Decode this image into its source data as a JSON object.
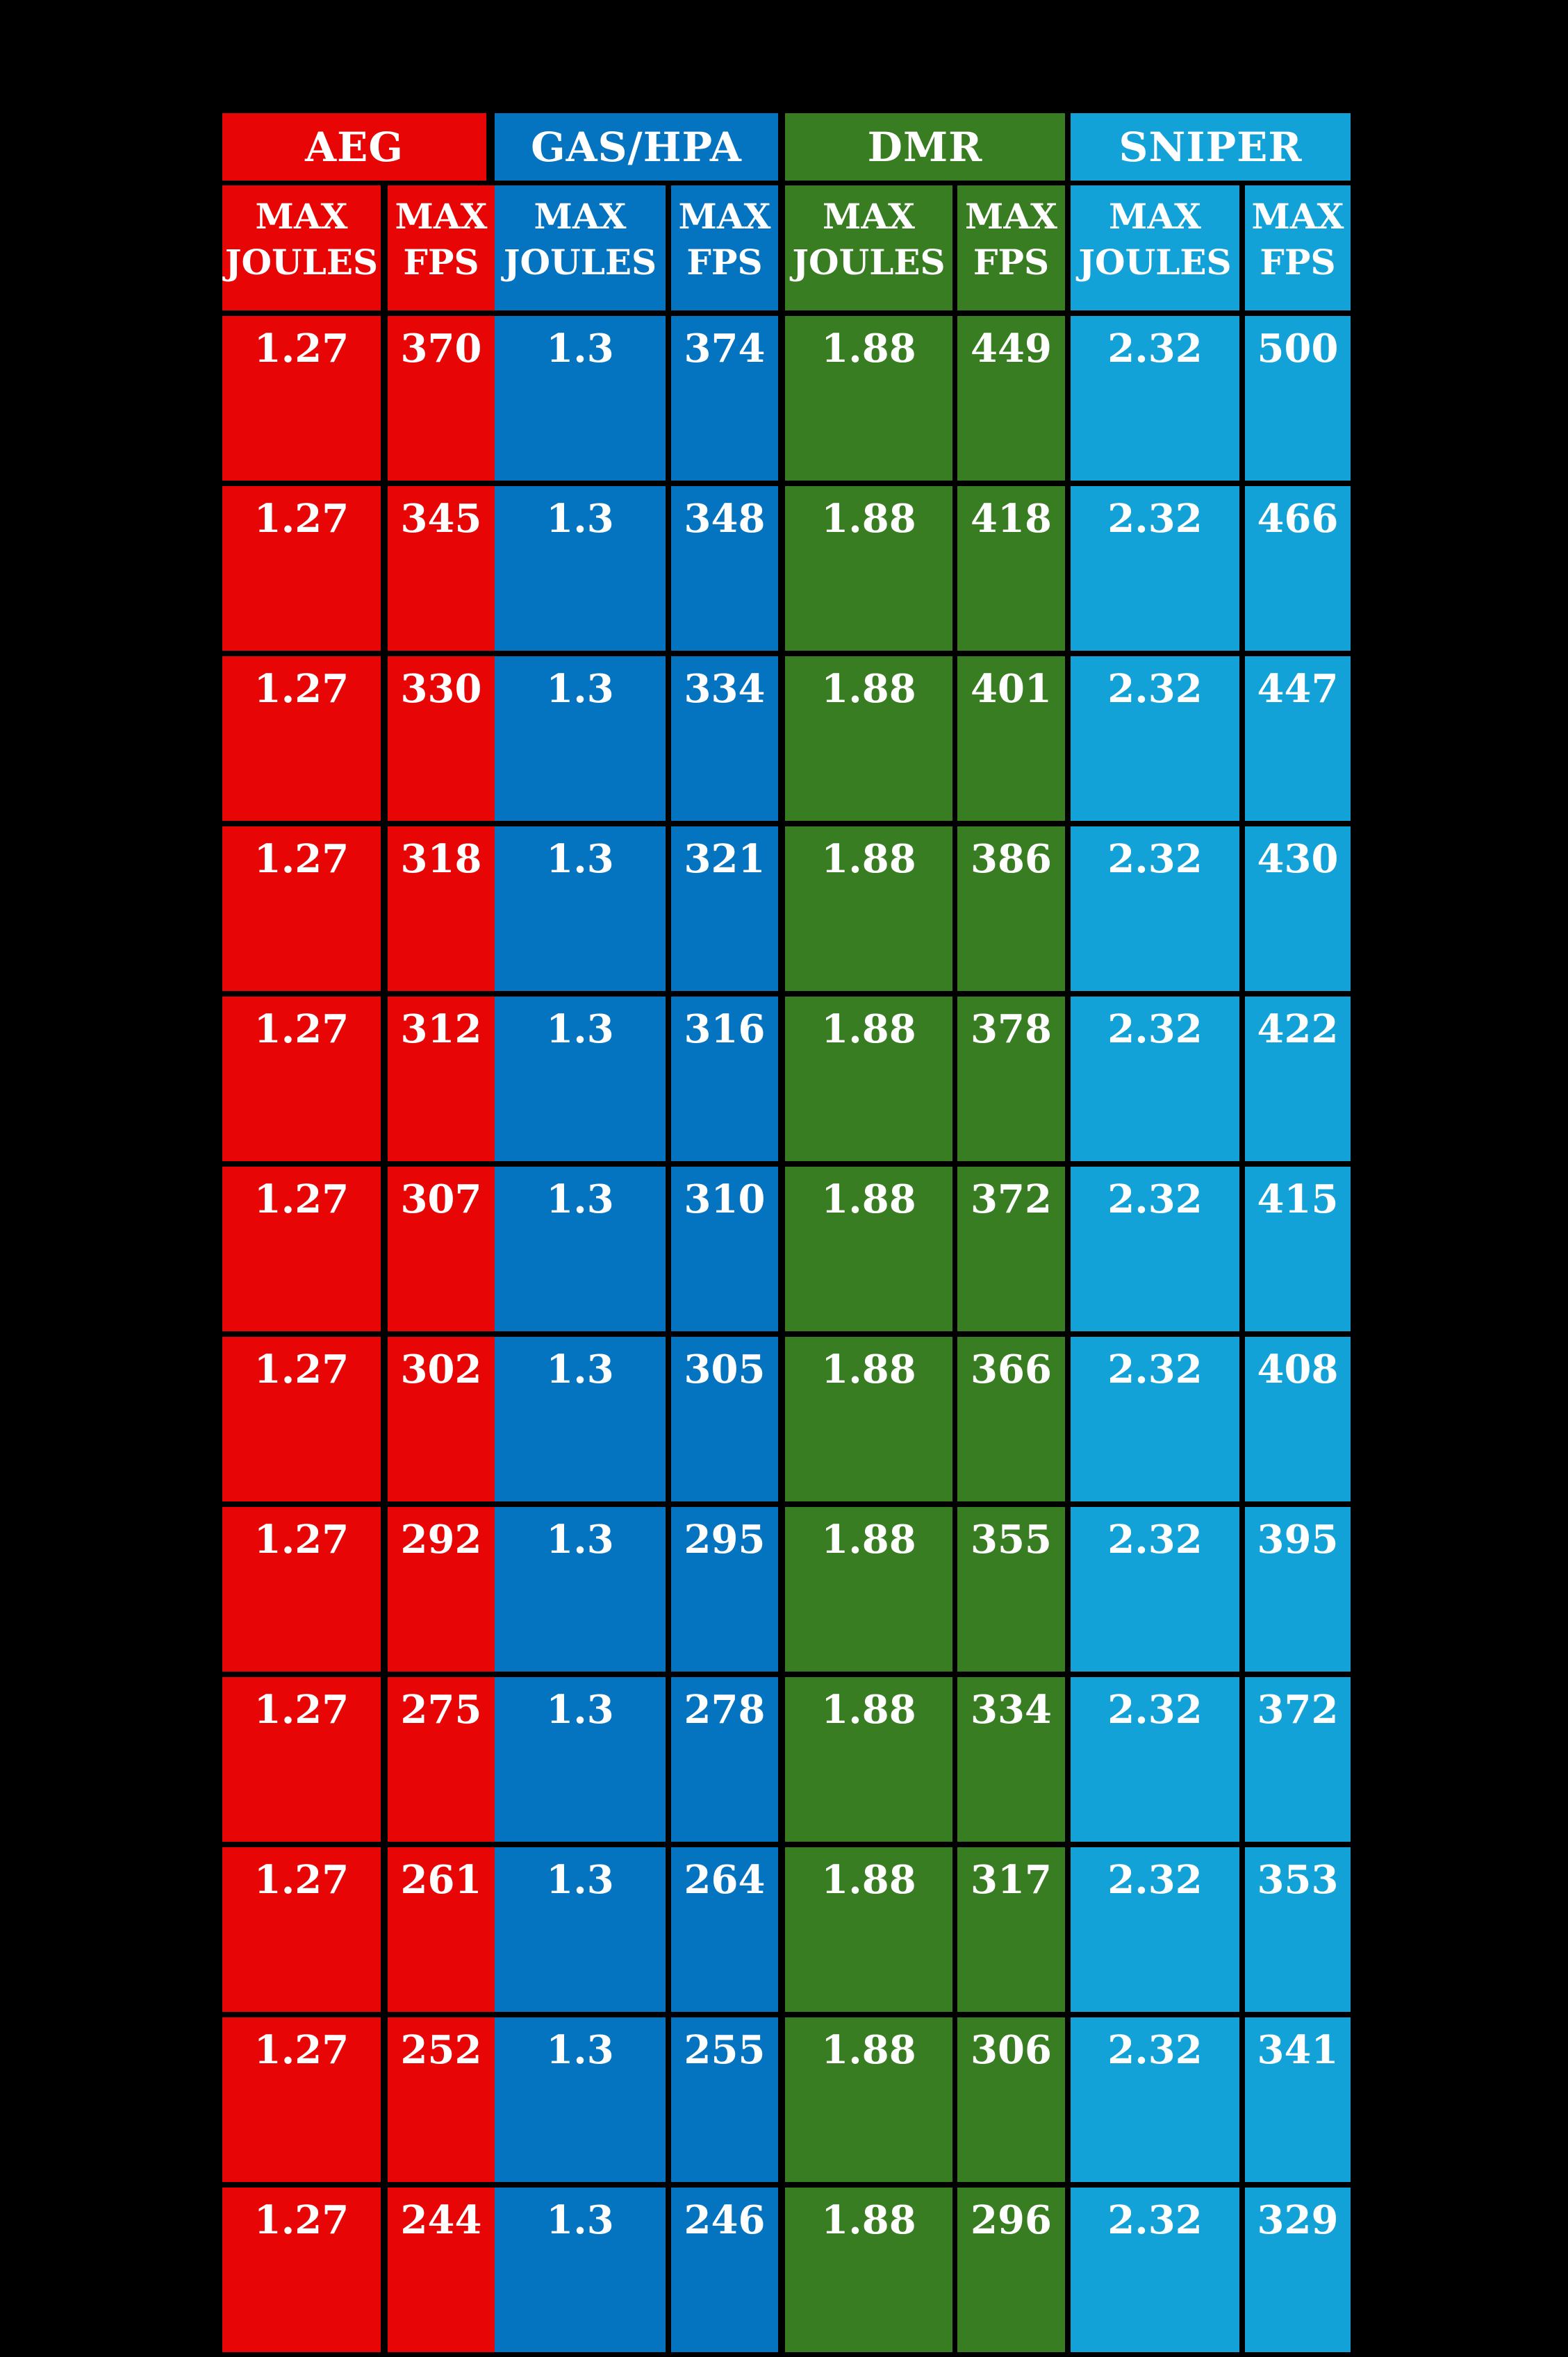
{
  "chart_data": {
    "type": "table",
    "title": "",
    "groups": [
      {
        "label": "AEG",
        "color": "#e80505"
      },
      {
        "label": "GAS/HPA",
        "color": "#0473c0"
      },
      {
        "label": "DMR",
        "color": "#387d22"
      },
      {
        "label": "SNIPER",
        "color": "#12a2d8"
      }
    ],
    "subheaders": [
      [
        "MAX",
        "JOULES"
      ],
      [
        "MAX",
        "FPS"
      ],
      [
        "MAX",
        "JOULES"
      ],
      [
        "MAX",
        "FPS"
      ],
      [
        "MAX",
        "JOULES"
      ],
      [
        "MAX",
        "FPS"
      ],
      [
        "MAX",
        "JOULES"
      ],
      [
        "MAX",
        "FPS"
      ]
    ],
    "columns": [
      "AEG MAX JOULES",
      "AEG MAX FPS",
      "GAS/HPA MAX JOULES",
      "GAS/HPA MAX FPS",
      "DMR MAX JOULES",
      "DMR MAX FPS",
      "SNIPER MAX JOULES",
      "SNIPER MAX FPS"
    ],
    "rows": [
      [
        "1.27",
        "370",
        "1.3",
        "374",
        "1.88",
        "449",
        "2.32",
        "500"
      ],
      [
        "1.27",
        "345",
        "1.3",
        "348",
        "1.88",
        "418",
        "2.32",
        "466"
      ],
      [
        "1.27",
        "330",
        "1.3",
        "334",
        "1.88",
        "401",
        "2.32",
        "447"
      ],
      [
        "1.27",
        "318",
        "1.3",
        "321",
        "1.88",
        "386",
        "2.32",
        "430"
      ],
      [
        "1.27",
        "312",
        "1.3",
        "316",
        "1.88",
        "378",
        "2.32",
        "422"
      ],
      [
        "1.27",
        "307",
        "1.3",
        "310",
        "1.88",
        "372",
        "2.32",
        "415"
      ],
      [
        "1.27",
        "302",
        "1.3",
        "305",
        "1.88",
        "366",
        "2.32",
        "408"
      ],
      [
        "1.27",
        "292",
        "1.3",
        "295",
        "1.88",
        "355",
        "2.32",
        "395"
      ],
      [
        "1.27",
        "275",
        "1.3",
        "278",
        "1.88",
        "334",
        "2.32",
        "372"
      ],
      [
        "1.27",
        "261",
        "1.3",
        "264",
        "1.88",
        "317",
        "2.32",
        "353"
      ],
      [
        "1.27",
        "252",
        "1.3",
        "255",
        "1.88",
        "306",
        "2.32",
        "341"
      ],
      [
        "1.27",
        "244",
        "1.3",
        "246",
        "1.88",
        "296",
        "2.32",
        "329"
      ]
    ],
    "layout_hints": {
      "background": "#000000",
      "text_color": "#ffffff",
      "grid": "thick black separators between cells; none between red FPS and blue JOULES columns",
      "legend_position": "none"
    }
  }
}
